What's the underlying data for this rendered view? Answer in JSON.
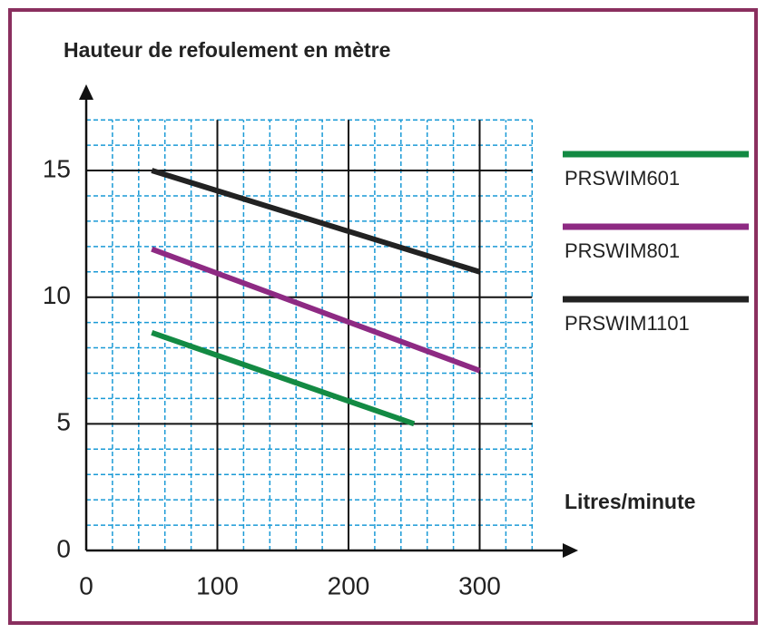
{
  "chart_data": {
    "type": "line",
    "y_label": "Hauteur de refoulement en mètre",
    "x_label": "Litres/minute",
    "xlim": [
      0,
      340
    ],
    "ylim": [
      0,
      17
    ],
    "xticks": [
      0,
      100,
      200,
      300
    ],
    "yticks": [
      0,
      5,
      10,
      15
    ],
    "xminorticks": [
      20,
      40,
      60,
      80,
      120,
      140,
      160,
      180,
      220,
      240,
      260,
      280,
      320,
      340
    ],
    "yminorticks": [
      1,
      2,
      3,
      4,
      6,
      7,
      8,
      9,
      11,
      12,
      13,
      14,
      16,
      17
    ],
    "grid": true,
    "series": [
      {
        "name": "PRSWIM601",
        "color": "#138a43",
        "x": [
          50,
          250
        ],
        "values": [
          8.6,
          5.0
        ]
      },
      {
        "name": "PRSWIM801",
        "color": "#8e2a83",
        "x": [
          50,
          300
        ],
        "values": [
          11.9,
          7.1
        ]
      },
      {
        "name": "PRSWIM1101",
        "color": "#222222",
        "x": [
          50,
          300
        ],
        "values": [
          15,
          11
        ]
      }
    ]
  }
}
